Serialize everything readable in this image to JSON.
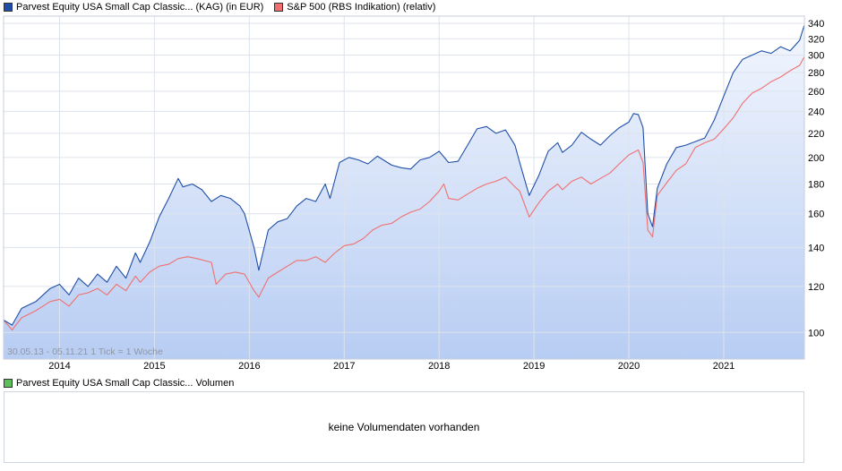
{
  "legend_top": [
    {
      "label": "Parvest Equity USA Small Cap Classic... (KAG) (in EUR)",
      "color": "#1f4fa8"
    },
    {
      "label": "S&P 500 (RBS Indikation) (relativ)",
      "color": "#f07070"
    }
  ],
  "legend_volume": {
    "label": "Parvest Equity USA Small Cap Classic... Volumen",
    "color": "#5cc05c"
  },
  "date_range_note": "30.05.13 - 05.11.21     1 Tick = 1 Woche",
  "volume_message": "keine Volumendaten vorhanden",
  "chart_data": {
    "type": "line",
    "scale": "log",
    "ylim": [
      90,
      350
    ],
    "y_ticks": [
      100,
      120,
      140,
      160,
      180,
      200,
      220,
      240,
      260,
      280,
      300,
      320,
      340
    ],
    "x_ticks": [
      {
        "label": "2014",
        "x": 2014.0
      },
      {
        "label": "2015",
        "x": 2015.0
      },
      {
        "label": "2016",
        "x": 2016.0
      },
      {
        "label": "2017",
        "x": 2017.0
      },
      {
        "label": "2018",
        "x": 2018.0
      },
      {
        "label": "2019",
        "x": 2019.0
      },
      {
        "label": "2020",
        "x": 2020.0
      },
      {
        "label": "2021",
        "x": 2021.0
      }
    ],
    "xlim": [
      2013.41,
      2021.85
    ],
    "grid": true,
    "series": [
      {
        "name": "Parvest Equity USA Small Cap Classic... (KAG) (in EUR)",
        "color": "#1f4fa8",
        "fill": true,
        "points": [
          [
            2013.41,
            105
          ],
          [
            2013.5,
            103
          ],
          [
            2013.6,
            110
          ],
          [
            2013.75,
            113
          ],
          [
            2013.9,
            119
          ],
          [
            2014.0,
            121
          ],
          [
            2014.1,
            116
          ],
          [
            2014.2,
            124
          ],
          [
            2014.3,
            120
          ],
          [
            2014.4,
            126
          ],
          [
            2014.5,
            122
          ],
          [
            2014.6,
            130
          ],
          [
            2014.7,
            124
          ],
          [
            2014.8,
            137
          ],
          [
            2014.85,
            132
          ],
          [
            2014.95,
            143
          ],
          [
            2015.05,
            158
          ],
          [
            2015.15,
            170
          ],
          [
            2015.25,
            184
          ],
          [
            2015.3,
            178
          ],
          [
            2015.4,
            180
          ],
          [
            2015.5,
            176
          ],
          [
            2015.6,
            168
          ],
          [
            2015.7,
            172
          ],
          [
            2015.8,
            170
          ],
          [
            2015.9,
            165
          ],
          [
            2015.95,
            160
          ],
          [
            2016.05,
            140
          ],
          [
            2016.1,
            128
          ],
          [
            2016.2,
            150
          ],
          [
            2016.3,
            155
          ],
          [
            2016.4,
            157
          ],
          [
            2016.5,
            165
          ],
          [
            2016.6,
            170
          ],
          [
            2016.7,
            168
          ],
          [
            2016.8,
            180
          ],
          [
            2016.85,
            170
          ],
          [
            2016.95,
            196
          ],
          [
            2017.05,
            200
          ],
          [
            2017.15,
            198
          ],
          [
            2017.25,
            195
          ],
          [
            2017.35,
            201
          ],
          [
            2017.5,
            194
          ],
          [
            2017.6,
            192
          ],
          [
            2017.7,
            191
          ],
          [
            2017.8,
            198
          ],
          [
            2017.9,
            200
          ],
          [
            2018.0,
            205
          ],
          [
            2018.1,
            196
          ],
          [
            2018.2,
            197
          ],
          [
            2018.3,
            210
          ],
          [
            2018.4,
            224
          ],
          [
            2018.5,
            226
          ],
          [
            2018.6,
            220
          ],
          [
            2018.7,
            223
          ],
          [
            2018.8,
            210
          ],
          [
            2018.85,
            196
          ],
          [
            2018.95,
            172
          ],
          [
            2019.05,
            186
          ],
          [
            2019.15,
            205
          ],
          [
            2019.25,
            212
          ],
          [
            2019.3,
            204
          ],
          [
            2019.4,
            210
          ],
          [
            2019.5,
            221
          ],
          [
            2019.6,
            215
          ],
          [
            2019.7,
            210
          ],
          [
            2019.8,
            218
          ],
          [
            2019.9,
            225
          ],
          [
            2020.0,
            230
          ],
          [
            2020.05,
            238
          ],
          [
            2020.1,
            237
          ],
          [
            2020.15,
            225
          ],
          [
            2020.2,
            160
          ],
          [
            2020.25,
            152
          ],
          [
            2020.3,
            177
          ],
          [
            2020.4,
            195
          ],
          [
            2020.5,
            208
          ],
          [
            2020.6,
            210
          ],
          [
            2020.7,
            213
          ],
          [
            2020.8,
            216
          ],
          [
            2020.9,
            232
          ],
          [
            2021.0,
            255
          ],
          [
            2021.1,
            280
          ],
          [
            2021.2,
            295
          ],
          [
            2021.3,
            300
          ],
          [
            2021.4,
            305
          ],
          [
            2021.5,
            302
          ],
          [
            2021.6,
            310
          ],
          [
            2021.7,
            305
          ],
          [
            2021.8,
            318
          ],
          [
            2021.85,
            338
          ]
        ]
      },
      {
        "name": "S&P 500 (RBS Indikation) (relativ)",
        "color": "#f07070",
        "fill": false,
        "points": [
          [
            2013.41,
            105
          ],
          [
            2013.5,
            101
          ],
          [
            2013.6,
            106
          ],
          [
            2013.75,
            109
          ],
          [
            2013.9,
            113
          ],
          [
            2014.0,
            114
          ],
          [
            2014.1,
            111
          ],
          [
            2014.2,
            116
          ],
          [
            2014.3,
            117
          ],
          [
            2014.4,
            119
          ],
          [
            2014.5,
            116
          ],
          [
            2014.6,
            121
          ],
          [
            2014.7,
            118
          ],
          [
            2014.8,
            125
          ],
          [
            2014.85,
            122
          ],
          [
            2014.95,
            127
          ],
          [
            2015.05,
            130
          ],
          [
            2015.15,
            131
          ],
          [
            2015.25,
            134
          ],
          [
            2015.35,
            135
          ],
          [
            2015.45,
            134
          ],
          [
            2015.6,
            132
          ],
          [
            2015.65,
            121
          ],
          [
            2015.75,
            126
          ],
          [
            2015.85,
            127
          ],
          [
            2015.95,
            126
          ],
          [
            2016.05,
            118
          ],
          [
            2016.1,
            115
          ],
          [
            2016.2,
            124
          ],
          [
            2016.3,
            127
          ],
          [
            2016.4,
            130
          ],
          [
            2016.5,
            133
          ],
          [
            2016.6,
            133
          ],
          [
            2016.7,
            135
          ],
          [
            2016.8,
            132
          ],
          [
            2016.9,
            137
          ],
          [
            2017.0,
            141
          ],
          [
            2017.1,
            142
          ],
          [
            2017.2,
            145
          ],
          [
            2017.3,
            150
          ],
          [
            2017.4,
            153
          ],
          [
            2017.5,
            154
          ],
          [
            2017.6,
            158
          ],
          [
            2017.7,
            161
          ],
          [
            2017.8,
            163
          ],
          [
            2017.9,
            168
          ],
          [
            2018.0,
            175
          ],
          [
            2018.05,
            180
          ],
          [
            2018.1,
            170
          ],
          [
            2018.2,
            169
          ],
          [
            2018.3,
            173
          ],
          [
            2018.4,
            177
          ],
          [
            2018.5,
            180
          ],
          [
            2018.6,
            182
          ],
          [
            2018.7,
            185
          ],
          [
            2018.8,
            178
          ],
          [
            2018.85,
            175
          ],
          [
            2018.95,
            158
          ],
          [
            2019.05,
            167
          ],
          [
            2019.15,
            175
          ],
          [
            2019.25,
            180
          ],
          [
            2019.3,
            176
          ],
          [
            2019.4,
            182
          ],
          [
            2019.5,
            185
          ],
          [
            2019.6,
            180
          ],
          [
            2019.7,
            184
          ],
          [
            2019.8,
            188
          ],
          [
            2019.9,
            195
          ],
          [
            2020.0,
            202
          ],
          [
            2020.1,
            206
          ],
          [
            2020.15,
            196
          ],
          [
            2020.2,
            150
          ],
          [
            2020.25,
            146
          ],
          [
            2020.3,
            172
          ],
          [
            2020.4,
            181
          ],
          [
            2020.5,
            190
          ],
          [
            2020.6,
            195
          ],
          [
            2020.7,
            208
          ],
          [
            2020.8,
            212
          ],
          [
            2020.9,
            215
          ],
          [
            2021.0,
            224
          ],
          [
            2021.1,
            234
          ],
          [
            2021.2,
            248
          ],
          [
            2021.3,
            258
          ],
          [
            2021.4,
            263
          ],
          [
            2021.5,
            270
          ],
          [
            2021.6,
            275
          ],
          [
            2021.7,
            282
          ],
          [
            2021.8,
            288
          ],
          [
            2021.85,
            298
          ]
        ]
      }
    ]
  }
}
